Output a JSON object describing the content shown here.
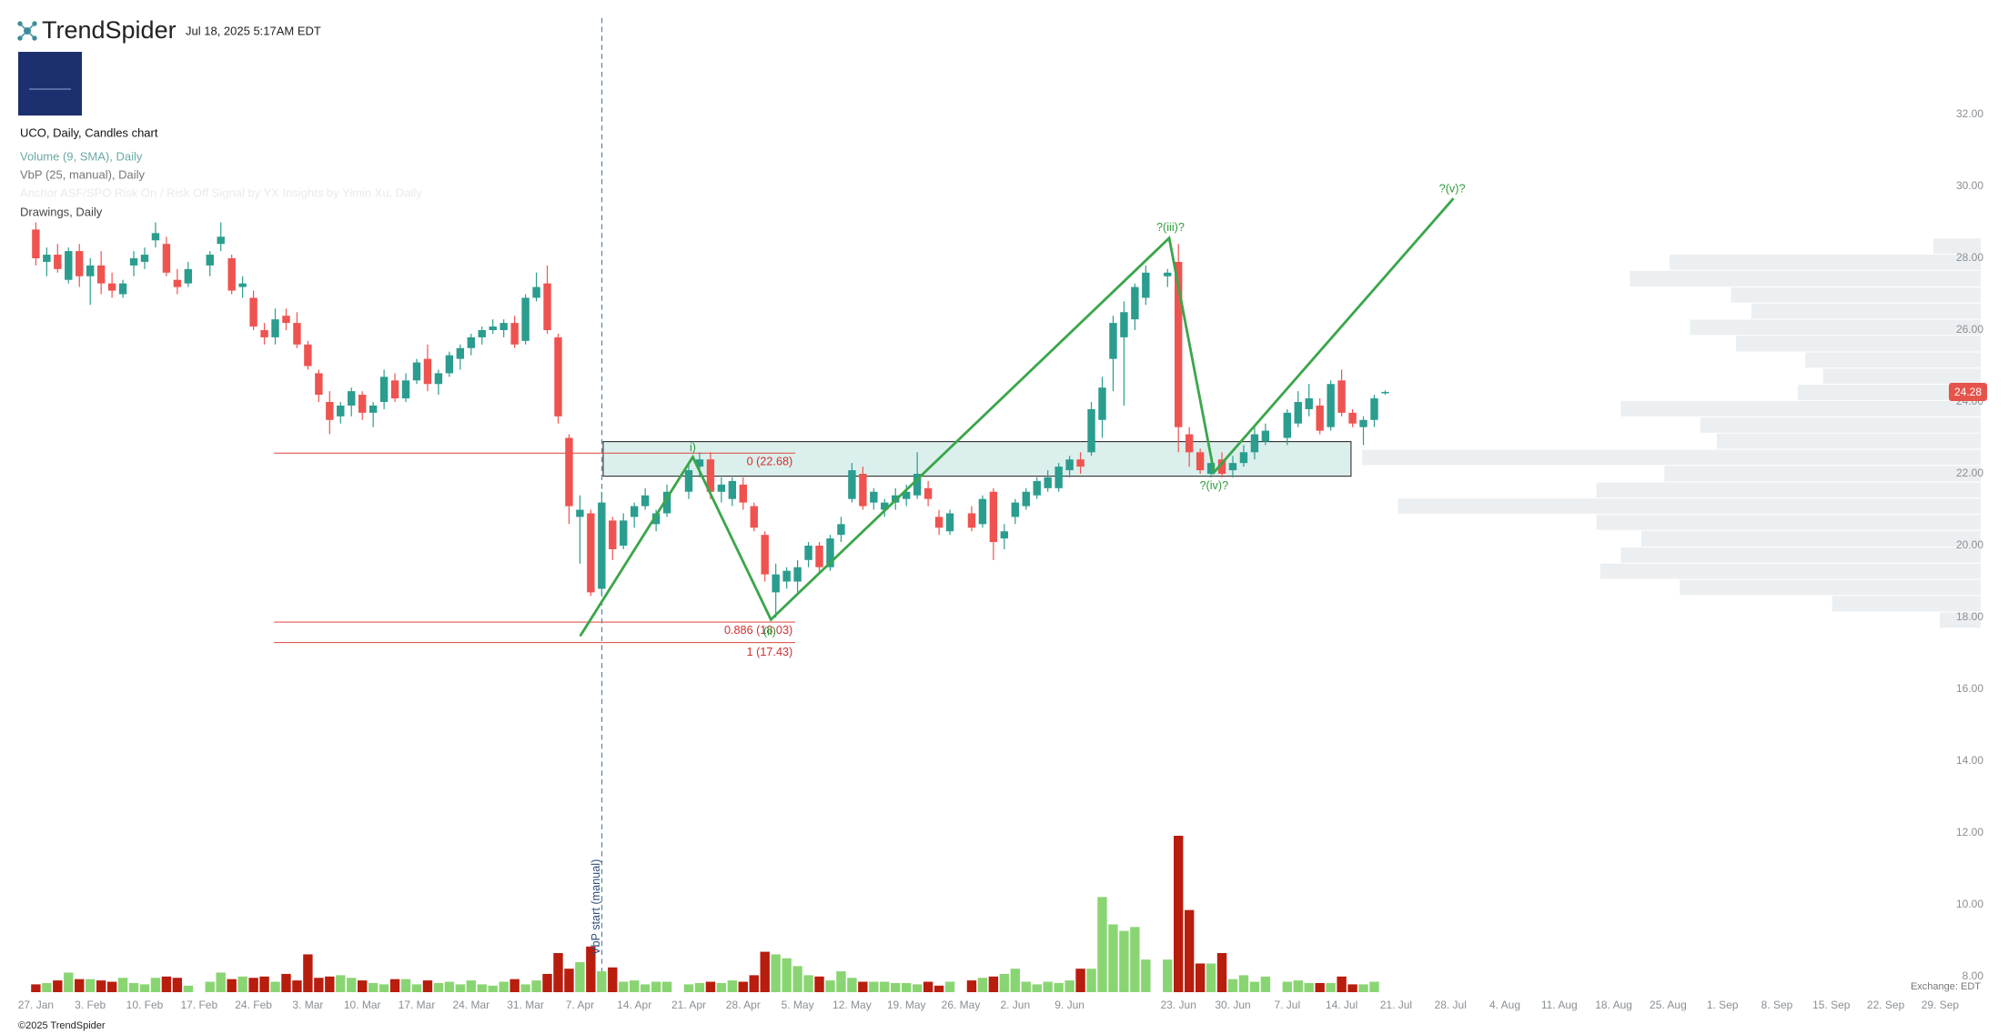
{
  "header": {
    "brand": "TrendSpider",
    "timestamp": "Jul 18, 2025 5:17AM EDT",
    "copyright": "©2025 TrendSpider"
  },
  "chart_data": {
    "type": "candlestick",
    "title": "UCO, Daily, Candles chart",
    "indicators": [
      "Volume (9, SMA), Daily",
      "VbP (25, manual), Daily",
      "Anchor ASF/SPO Risk On / Risk Off Signal by YX Insights by Yimin Xu, Daily",
      "Drawings, Daily"
    ],
    "exchange": "Exchange: EDT",
    "up_color": "#2a9d8f",
    "down_color": "#ef5350",
    "volume_up_color": "#8ad573",
    "volume_down_color": "#b81d0d",
    "ylim": [
      7.57,
      35.19
    ],
    "yticks": [
      {
        "value": 8,
        "label": "8.00"
      },
      {
        "value": 10,
        "label": "10.00"
      },
      {
        "value": 12,
        "label": "12.00"
      },
      {
        "value": 14,
        "label": "14.00"
      },
      {
        "value": 16,
        "label": "16.00"
      },
      {
        "value": 18,
        "label": "18.00"
      },
      {
        "value": 20,
        "label": "20.00"
      },
      {
        "value": 22,
        "label": "22.00"
      },
      {
        "value": 24,
        "label": "24.00"
      },
      {
        "value": 26,
        "label": "26.00"
      },
      {
        "value": 28,
        "label": "28.00"
      },
      {
        "value": 30,
        "label": "30.00"
      },
      {
        "value": 32,
        "label": "32.00"
      }
    ],
    "last_price": 24.28,
    "last_price_color": "#e5534b",
    "categories": [
      "27. Jan",
      null,
      null,
      null,
      null,
      "3. Feb",
      null,
      null,
      null,
      null,
      "10. Feb",
      null,
      null,
      null,
      null,
      "17. Feb",
      null,
      null,
      null,
      null,
      "24. Feb",
      null,
      null,
      null,
      null,
      "3. Mar",
      null,
      null,
      null,
      null,
      "10. Mar",
      null,
      null,
      null,
      null,
      "17. Mar",
      null,
      null,
      null,
      null,
      "24. Mar",
      null,
      null,
      null,
      null,
      "31. Mar",
      null,
      null,
      null,
      null,
      "7. Apr",
      null,
      null,
      null,
      null,
      "14. Apr",
      null,
      null,
      null,
      null,
      "21. Apr",
      null,
      null,
      null,
      null,
      "28. Apr",
      null,
      null,
      null,
      null,
      "5. May",
      null,
      null,
      null,
      null,
      "12. May",
      null,
      null,
      null,
      null,
      "19. May",
      null,
      null,
      null,
      null,
      "26. May",
      null,
      null,
      null,
      null,
      "2. Jun",
      null,
      null,
      null,
      null,
      "9. Jun",
      null,
      null,
      null,
      null,
      null,
      null,
      null,
      null,
      null,
      "23. Jun",
      null,
      null,
      null,
      null,
      "30. Jun",
      null,
      null,
      null,
      null,
      "7. Jul",
      null,
      null,
      null,
      null,
      "14. Jul",
      null,
      null,
      null,
      null,
      "21. Jul",
      null,
      null,
      null,
      null,
      "28. Jul",
      null,
      null,
      null,
      null,
      "4. Aug",
      null,
      null,
      null,
      null,
      "11. Aug",
      null,
      null,
      null,
      null,
      "18. Aug",
      null,
      null,
      null,
      null,
      "25. Aug",
      null,
      null,
      null,
      null,
      "1. Sep",
      null,
      null,
      null,
      null,
      "8. Sep",
      null,
      null,
      null,
      null,
      "15. Sep",
      null,
      null,
      null,
      null,
      "22. Sep",
      null,
      null,
      null,
      null,
      "29. Sep",
      null,
      null,
      null,
      null
    ],
    "ohlc": [
      [
        28.8,
        29.0,
        27.8,
        28.0
      ],
      [
        27.9,
        28.3,
        27.5,
        28.1
      ],
      [
        28.1,
        28.4,
        27.6,
        27.7
      ],
      [
        27.4,
        28.3,
        27.3,
        28.2
      ],
      [
        28.2,
        28.4,
        27.2,
        27.5
      ],
      [
        27.5,
        28.0,
        26.7,
        27.8
      ],
      [
        27.8,
        28.2,
        27.0,
        27.3
      ],
      [
        27.3,
        27.6,
        26.9,
        27.1
      ],
      [
        27.0,
        27.4,
        26.9,
        27.3
      ],
      [
        27.8,
        28.2,
        27.5,
        28.0
      ],
      [
        27.9,
        28.3,
        27.7,
        28.1
      ],
      [
        28.5,
        29.0,
        28.3,
        28.7
      ],
      [
        28.4,
        28.6,
        27.5,
        27.6
      ],
      [
        27.4,
        27.7,
        27.0,
        27.2
      ],
      [
        27.3,
        27.9,
        27.2,
        27.7
      ],
      null,
      [
        27.8,
        28.2,
        27.5,
        28.1
      ],
      [
        28.4,
        29.0,
        28.2,
        28.6
      ],
      [
        28.0,
        28.1,
        27.0,
        27.1
      ],
      [
        27.2,
        27.5,
        26.9,
        27.3
      ],
      [
        26.9,
        27.1,
        26.0,
        26.1
      ],
      [
        26.0,
        26.2,
        25.6,
        25.8
      ],
      [
        25.8,
        26.6,
        25.6,
        26.3
      ],
      [
        26.4,
        26.6,
        26.0,
        26.2
      ],
      [
        26.2,
        26.5,
        25.5,
        25.6
      ],
      [
        25.6,
        25.7,
        24.9,
        25.0
      ],
      [
        24.8,
        24.9,
        24.0,
        24.2
      ],
      [
        24.0,
        24.3,
        23.1,
        23.5
      ],
      [
        23.6,
        24.0,
        23.4,
        23.9
      ],
      [
        23.9,
        24.4,
        23.6,
        24.3
      ],
      [
        24.2,
        24.3,
        23.5,
        23.7
      ],
      [
        23.7,
        24.0,
        23.3,
        23.9
      ],
      [
        24.0,
        24.9,
        23.8,
        24.7
      ],
      [
        24.6,
        24.8,
        24.0,
        24.1
      ],
      [
        24.1,
        24.8,
        24.0,
        24.6
      ],
      [
        24.6,
        25.2,
        24.5,
        25.1
      ],
      [
        25.2,
        25.6,
        24.3,
        24.5
      ],
      [
        24.5,
        24.9,
        24.2,
        24.8
      ],
      [
        24.8,
        25.4,
        24.7,
        25.3
      ],
      [
        25.2,
        25.6,
        24.9,
        25.5
      ],
      [
        25.5,
        25.9,
        25.3,
        25.8
      ],
      [
        25.8,
        26.1,
        25.6,
        26.0
      ],
      [
        26.0,
        26.3,
        25.9,
        26.1
      ],
      [
        26.0,
        26.3,
        25.8,
        26.2
      ],
      [
        26.2,
        26.4,
        25.5,
        25.6
      ],
      [
        25.7,
        27.0,
        25.6,
        26.9
      ],
      [
        26.9,
        27.6,
        26.8,
        27.2
      ],
      [
        27.3,
        27.8,
        25.9,
        26.0
      ],
      [
        25.8,
        25.9,
        23.4,
        23.6
      ],
      [
        23.0,
        23.1,
        20.6,
        21.1
      ],
      [
        20.8,
        21.4,
        19.5,
        21.0
      ],
      [
        20.9,
        21.0,
        18.6,
        18.7
      ],
      [
        18.8,
        21.5,
        18.6,
        21.2
      ],
      [
        20.7,
        20.8,
        19.6,
        19.9
      ],
      [
        20.0,
        20.9,
        19.9,
        20.7
      ],
      [
        20.8,
        21.2,
        20.5,
        21.1
      ],
      [
        21.1,
        21.6,
        21.0,
        21.4
      ],
      [
        20.6,
        21.0,
        20.4,
        20.9
      ],
      [
        20.9,
        21.7,
        20.8,
        21.5
      ],
      null,
      [
        21.5,
        22.3,
        21.3,
        22.1
      ],
      [
        22.2,
        22.6,
        21.9,
        22.4
      ],
      [
        22.4,
        22.6,
        21.3,
        21.5
      ],
      [
        21.5,
        21.9,
        21.2,
        21.7
      ],
      [
        21.3,
        21.9,
        21.1,
        21.8
      ],
      [
        21.7,
        21.9,
        21.0,
        21.2
      ],
      [
        21.1,
        21.2,
        20.4,
        20.5
      ],
      [
        20.3,
        20.4,
        19.0,
        19.2
      ],
      [
        18.7,
        19.5,
        18.0,
        19.2
      ],
      [
        19.0,
        19.4,
        18.8,
        19.3
      ],
      [
        19.0,
        19.6,
        18.7,
        19.4
      ],
      [
        19.6,
        20.1,
        19.4,
        20.0
      ],
      [
        20.0,
        20.1,
        19.2,
        19.4
      ],
      [
        19.4,
        20.3,
        19.3,
        20.2
      ],
      [
        20.3,
        20.8,
        20.1,
        20.6
      ],
      [
        21.3,
        22.3,
        21.2,
        22.1
      ],
      [
        22.0,
        22.2,
        21.0,
        21.1
      ],
      [
        21.2,
        21.6,
        21.0,
        21.5
      ],
      [
        21.0,
        21.3,
        20.8,
        21.2
      ],
      [
        21.2,
        21.6,
        21.0,
        21.4
      ],
      [
        21.3,
        21.7,
        21.1,
        21.5
      ],
      [
        21.4,
        22.6,
        21.3,
        22.0
      ],
      [
        21.6,
        21.8,
        21.1,
        21.3
      ],
      [
        20.8,
        21.0,
        20.3,
        20.5
      ],
      [
        20.4,
        21.0,
        20.3,
        20.9
      ],
      null,
      [
        20.9,
        21.1,
        20.4,
        20.5
      ],
      [
        20.6,
        21.4,
        20.5,
        21.3
      ],
      [
        21.5,
        21.6,
        19.6,
        20.1
      ],
      [
        20.2,
        20.6,
        19.9,
        20.4
      ],
      [
        20.8,
        21.3,
        20.6,
        21.2
      ],
      [
        21.1,
        21.6,
        21.0,
        21.5
      ],
      [
        21.4,
        21.9,
        21.3,
        21.8
      ],
      [
        21.6,
        22.1,
        21.5,
        21.9
      ],
      [
        21.6,
        22.3,
        21.5,
        22.2
      ],
      [
        22.1,
        22.5,
        21.9,
        22.4
      ],
      [
        22.4,
        22.6,
        22.0,
        22.2
      ],
      [
        22.6,
        24.0,
        22.5,
        23.8
      ],
      [
        23.5,
        24.7,
        23.0,
        24.4
      ],
      [
        25.2,
        26.4,
        24.3,
        26.2
      ],
      [
        25.8,
        26.8,
        23.9,
        26.5
      ],
      [
        26.3,
        27.3,
        26.0,
        27.2
      ],
      [
        26.9,
        27.8,
        26.7,
        27.6
      ],
      null,
      [
        27.5,
        27.7,
        27.2,
        27.6
      ],
      [
        27.9,
        28.4,
        22.6,
        23.3
      ],
      [
        23.1,
        23.3,
        22.2,
        22.6
      ],
      [
        22.6,
        22.7,
        22.0,
        22.1
      ],
      [
        22.0,
        22.4,
        21.9,
        22.3
      ],
      [
        22.4,
        22.6,
        21.9,
        22.0
      ],
      [
        22.1,
        22.5,
        21.9,
        22.3
      ],
      [
        22.3,
        22.8,
        22.2,
        22.6
      ],
      [
        22.6,
        23.3,
        22.4,
        23.1
      ],
      [
        22.9,
        23.4,
        22.8,
        23.2
      ],
      null,
      [
        23.0,
        23.8,
        22.8,
        23.7
      ],
      [
        23.4,
        24.3,
        23.3,
        24.0
      ],
      [
        23.8,
        24.5,
        23.6,
        24.1
      ],
      [
        23.9,
        24.1,
        23.1,
        23.2
      ],
      [
        23.3,
        24.6,
        23.2,
        24.5
      ],
      [
        24.6,
        24.9,
        23.6,
        23.7
      ],
      [
        23.7,
        23.8,
        23.3,
        23.4
      ],
      [
        23.3,
        23.6,
        22.8,
        23.5
      ],
      [
        23.5,
        24.2,
        23.3,
        24.1
      ],
      [
        24.25,
        24.32,
        24.2,
        24.28
      ],
      null,
      null,
      null,
      null,
      null,
      null,
      null,
      null,
      null,
      null,
      null,
      null,
      null,
      null,
      null,
      null,
      null,
      null,
      null,
      null,
      null,
      null,
      null,
      null,
      null,
      null,
      null,
      null,
      null,
      null,
      null,
      null,
      null,
      null,
      null,
      null,
      null,
      null,
      null,
      null,
      null,
      null,
      null,
      null,
      null,
      null,
      null,
      null,
      null,
      null,
      null,
      null,
      null,
      null,
      null
    ],
    "volume": [
      0.6,
      0.7,
      0.9,
      1.5,
      1.0,
      1.0,
      0.9,
      0.8,
      1.1,
      0.7,
      0.6,
      1.1,
      1.2,
      1.1,
      0.5,
      null,
      0.8,
      1.5,
      1.0,
      1.2,
      1.1,
      1.2,
      0.8,
      1.4,
      0.9,
      2.9,
      1.1,
      1.2,
      1.3,
      1.1,
      0.9,
      0.7,
      0.6,
      1.0,
      1.0,
      0.6,
      0.9,
      0.7,
      0.8,
      0.6,
      0.9,
      0.6,
      0.5,
      0.8,
      1.0,
      0.6,
      0.9,
      1.4,
      3.0,
      1.8,
      2.3,
      3.5,
      1.6,
      1.9,
      0.8,
      0.9,
      0.6,
      0.8,
      0.8,
      null,
      0.6,
      0.7,
      0.8,
      0.7,
      0.9,
      0.8,
      1.3,
      3.1,
      2.9,
      2.6,
      2.0,
      1.3,
      1.2,
      0.9,
      1.6,
      1.1,
      0.8,
      0.8,
      0.8,
      0.7,
      0.7,
      0.6,
      0.8,
      0.5,
      0.8,
      null,
      0.9,
      1.1,
      1.2,
      1.4,
      1.8,
      0.8,
      0.6,
      0.8,
      0.7,
      0.9,
      1.8,
      1.8,
      7.3,
      5.2,
      4.7,
      5.0,
      2.5,
      null,
      2.5,
      12.0,
      6.3,
      2.2,
      2.2,
      3.0,
      1.0,
      1.3,
      0.8,
      1.2,
      null,
      0.8,
      0.9,
      0.7,
      0.7,
      0.7,
      1.2,
      0.6,
      0.6,
      0.8,
      null,
      null,
      null,
      null,
      null,
      null,
      null,
      null,
      null,
      null,
      null,
      null,
      null,
      null,
      null,
      null,
      null,
      null,
      null,
      null,
      null,
      null,
      null,
      null,
      null,
      null,
      null,
      null,
      null,
      null,
      null,
      null,
      null,
      null,
      null,
      null,
      null,
      null,
      null,
      null,
      null,
      null,
      null,
      null,
      null,
      null,
      null,
      null,
      null,
      null,
      null,
      null,
      null,
      null,
      null,
      null
    ],
    "vbp": {
      "color": "#eceff1",
      "bins": [
        17.69,
        18.14,
        18.6,
        19.05,
        19.5,
        19.95,
        20.41,
        20.86,
        21.31,
        21.76,
        22.22,
        22.67,
        23.12,
        23.57,
        24.03,
        24.48,
        24.93,
        25.38,
        25.84,
        26.29,
        26.74,
        27.19,
        27.65,
        28.1,
        28.55
      ],
      "values": [
        32,
        116,
        235,
        297,
        281,
        265,
        300,
        455,
        300,
        247,
        483,
        206,
        219,
        281,
        143,
        123,
        137,
        191,
        227,
        179,
        195,
        274,
        243,
        37
      ]
    },
    "fib_labels": [
      "0 (22.68)",
      "0.886 (18.03)",
      "1 (17.43)"
    ],
    "wave_labels": [
      "i)",
      "(ii)",
      "?(iii)?",
      "?(iv)?",
      "?(v)?"
    ],
    "vbp_start_label": "VbP start (manual)"
  }
}
